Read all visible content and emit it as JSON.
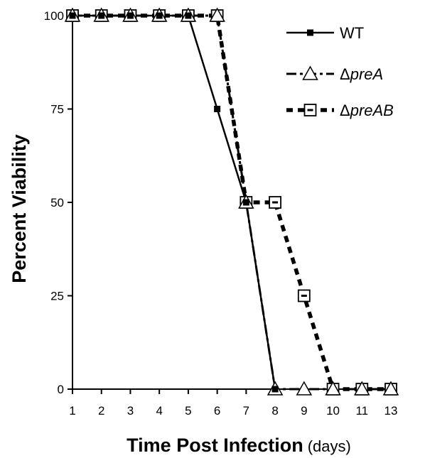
{
  "chart_data": {
    "type": "line",
    "title": "",
    "xlabel": "Time Post Infection",
    "xlabel_unit": "(days)",
    "ylabel": "Percent Viability",
    "categories": [
      "1",
      "2",
      "3",
      "4",
      "5",
      "6",
      "7",
      "8",
      "9",
      "10",
      "11",
      "13"
    ],
    "yticks": [
      "0",
      "25",
      "50",
      "75",
      "100"
    ],
    "ylim": [
      0,
      100
    ],
    "grid": false,
    "legend_position": "top-right",
    "series": [
      {
        "name": "WT",
        "name_prefix": "",
        "marker": "filled-square",
        "line_style": "solid",
        "points": [
          {
            "x": "1",
            "y": 100
          },
          {
            "x": "2",
            "y": 100
          },
          {
            "x": "3",
            "y": 100
          },
          {
            "x": "4",
            "y": 100
          },
          {
            "x": "5",
            "y": 100
          },
          {
            "x": "6",
            "y": 75
          },
          {
            "x": "7",
            "y": 50
          },
          {
            "x": "8",
            "y": 0
          }
        ]
      },
      {
        "name": "preA",
        "name_prefix": "Δ",
        "marker": "open-triangle",
        "line_style": "dash-dot",
        "points": [
          {
            "x": "1",
            "y": 100
          },
          {
            "x": "2",
            "y": 100
          },
          {
            "x": "3",
            "y": 100
          },
          {
            "x": "4",
            "y": 100
          },
          {
            "x": "5",
            "y": 100
          },
          {
            "x": "6",
            "y": 100
          },
          {
            "x": "7",
            "y": 50
          },
          {
            "x": "8",
            "y": 0
          },
          {
            "x": "9",
            "y": 0
          },
          {
            "x": "10",
            "y": 0
          },
          {
            "x": "11",
            "y": 0
          },
          {
            "x": "13",
            "y": 0
          }
        ]
      },
      {
        "name": "preAB",
        "name_prefix": "Δ",
        "marker": "open-square-dash",
        "line_style": "dotted-thick",
        "points": [
          {
            "x": "1",
            "y": 100
          },
          {
            "x": "2",
            "y": 100
          },
          {
            "x": "3",
            "y": 100
          },
          {
            "x": "4",
            "y": 100
          },
          {
            "x": "5",
            "y": 100
          },
          {
            "x": "6",
            "y": 100
          },
          {
            "x": "7",
            "y": 50
          },
          {
            "x": "8",
            "y": 50
          },
          {
            "x": "9",
            "y": 25
          },
          {
            "x": "10",
            "y": 0
          },
          {
            "x": "11",
            "y": 0
          },
          {
            "x": "13",
            "y": 0
          }
        ]
      }
    ],
    "colors": {
      "ink": "#000000",
      "background": "#ffffff"
    }
  }
}
